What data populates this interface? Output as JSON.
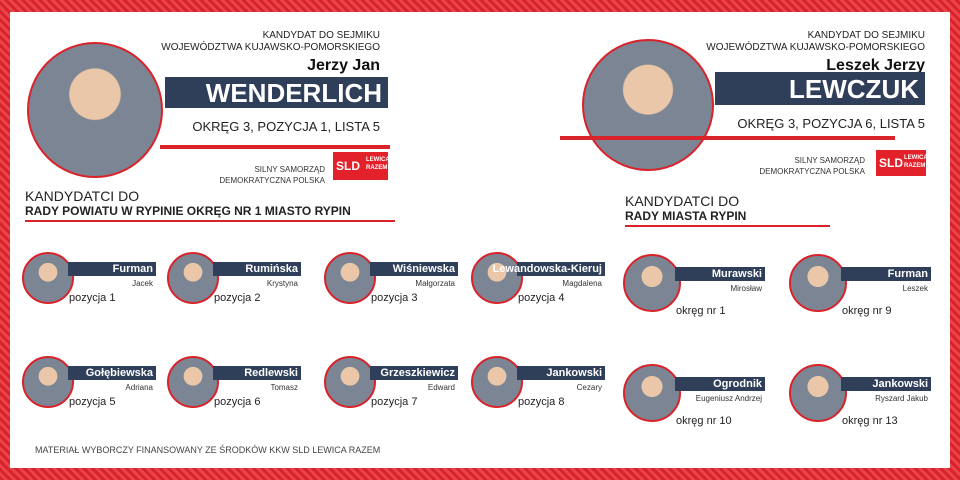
{
  "left_main": {
    "office_line1": "KANDYDAT DO SEJMIKU",
    "office_line2": "WOJEWÓDZTWA KUJAWSKO-POMORSKIEGO",
    "first_names": "Jerzy Jan",
    "surname": "WENDERLICH",
    "listing": "OKRĘG 3, POZYCJA 1, LISTA 5",
    "slogan_line1": "SILNY SAMORZĄD",
    "slogan_line2": "DEMOKRATYCZNA POLSKA",
    "logo_main": "SLD",
    "logo_side": "LEWICA RAZEM"
  },
  "right_main": {
    "office_line1": "KANDYDAT DO SEJMIKU",
    "office_line2": "WOJEWÓDZTWA KUJAWSKO-POMORSKIEGO",
    "first_names": "Leszek Jerzy",
    "surname": "LEWCZUK",
    "listing": "OKRĘG 3, POZYCJA 6, LISTA 5",
    "slogan_line1": "SILNY SAMORZĄD",
    "slogan_line2": "DEMOKRATYCZNA POLSKA",
    "logo_main": "SLD",
    "logo_side": "LEWICA RAZEM"
  },
  "left_section": {
    "heading": "KANDYDATCI DO",
    "subheading": "RADY POWIATU W RYPINIE OKRĘG NR 1 MIASTO RYPIN",
    "candidates": [
      {
        "surname": "Furman",
        "first_name": "Jacek",
        "position": "pozycja 1"
      },
      {
        "surname": "Rumińska",
        "first_name": "Krystyna",
        "position": "pozycja 2"
      },
      {
        "surname": "Wiśniewska",
        "first_name": "Małgorzata",
        "position": "pozycja 3"
      },
      {
        "surname": "Lewandowska-Kieruj",
        "first_name": "Magdalena",
        "position": "pozycja 4"
      },
      {
        "surname": "Gołębiewska",
        "first_name": "Adriana",
        "position": "pozycja 5"
      },
      {
        "surname": "Redlewski",
        "first_name": "Tomasz",
        "position": "pozycja 6"
      },
      {
        "surname": "Grzeszkiewicz",
        "first_name": "Edward",
        "position": "pozycja 7"
      },
      {
        "surname": "Jankowski",
        "first_name": "Cezary",
        "position": "pozycja 8"
      }
    ]
  },
  "right_section": {
    "heading": "KANDYDATCI DO",
    "subheading": "RADY MIASTA RYPIN",
    "candidates": [
      {
        "surname": "Murawski",
        "first_name": "Mirosław",
        "position": "okręg nr 1"
      },
      {
        "surname": "Furman",
        "first_name": "Leszek",
        "position": "okręg nr 9"
      },
      {
        "surname": "Ogrodnik",
        "first_name": "Eugeniusz Andrzej",
        "position": "okręg nr 10"
      },
      {
        "surname": "Jankowski",
        "first_name": "Ryszard Jakub",
        "position": "okręg nr 13"
      }
    ]
  },
  "footer": "MATERIAŁ WYBORCZY FINANSOWANY ZE ŚRODKÓW KKW SLD LEWICA RAZEM"
}
